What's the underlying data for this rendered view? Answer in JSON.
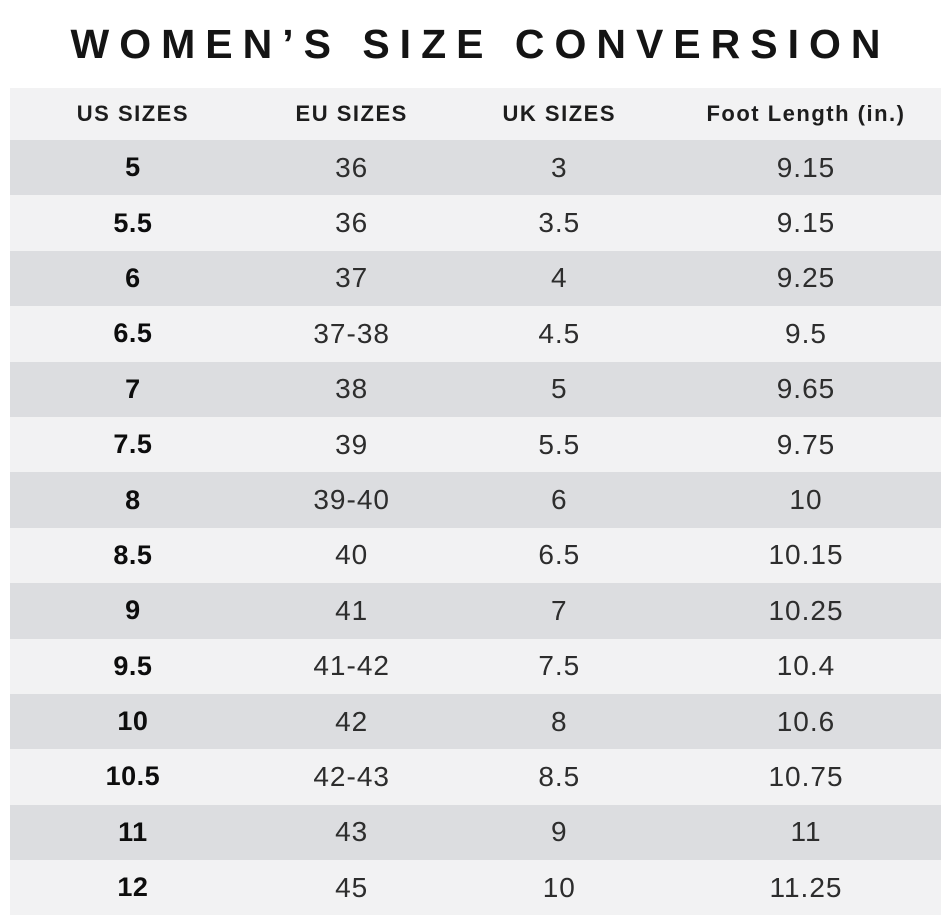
{
  "page": {
    "title": "WOMEN’S SIZE CONVERSION"
  },
  "colors": {
    "background": "#ffffff",
    "header_bg": "#f2f2f3",
    "row_dark": "#dcdde0",
    "row_light": "#f2f2f3",
    "title_text": "#141414",
    "cell_text": "#2d2d2d",
    "us_cell_text": "#0d0d0d"
  },
  "chart_data": {
    "type": "table",
    "title": "WOMEN’S SIZE CONVERSION",
    "columns": [
      "US SIZES",
      "EU SIZES",
      "UK SIZES",
      "Foot Length (in.)"
    ],
    "rows": [
      [
        "5",
        "36",
        "3",
        "9.15"
      ],
      [
        "5.5",
        "36",
        "3.5",
        "9.15"
      ],
      [
        "6",
        "37",
        "4",
        "9.25"
      ],
      [
        "6.5",
        "37-38",
        "4.5",
        "9.5"
      ],
      [
        "7",
        "38",
        "5",
        "9.65"
      ],
      [
        "7.5",
        "39",
        "5.5",
        "9.75"
      ],
      [
        "8",
        "39-40",
        "6",
        "10"
      ],
      [
        "8.5",
        "40",
        "6.5",
        "10.15"
      ],
      [
        "9",
        "41",
        "7",
        "10.25"
      ],
      [
        "9.5",
        "41-42",
        "7.5",
        "10.4"
      ],
      [
        "10",
        "42",
        "8",
        "10.6"
      ],
      [
        "10.5",
        "42-43",
        "8.5",
        "10.75"
      ],
      [
        "11",
        "43",
        "9",
        "11"
      ],
      [
        "12",
        "45",
        "10",
        "11.25"
      ]
    ],
    "layout": {
      "striped": true,
      "first_data_row_shade": "dark",
      "alignment": "center"
    }
  }
}
